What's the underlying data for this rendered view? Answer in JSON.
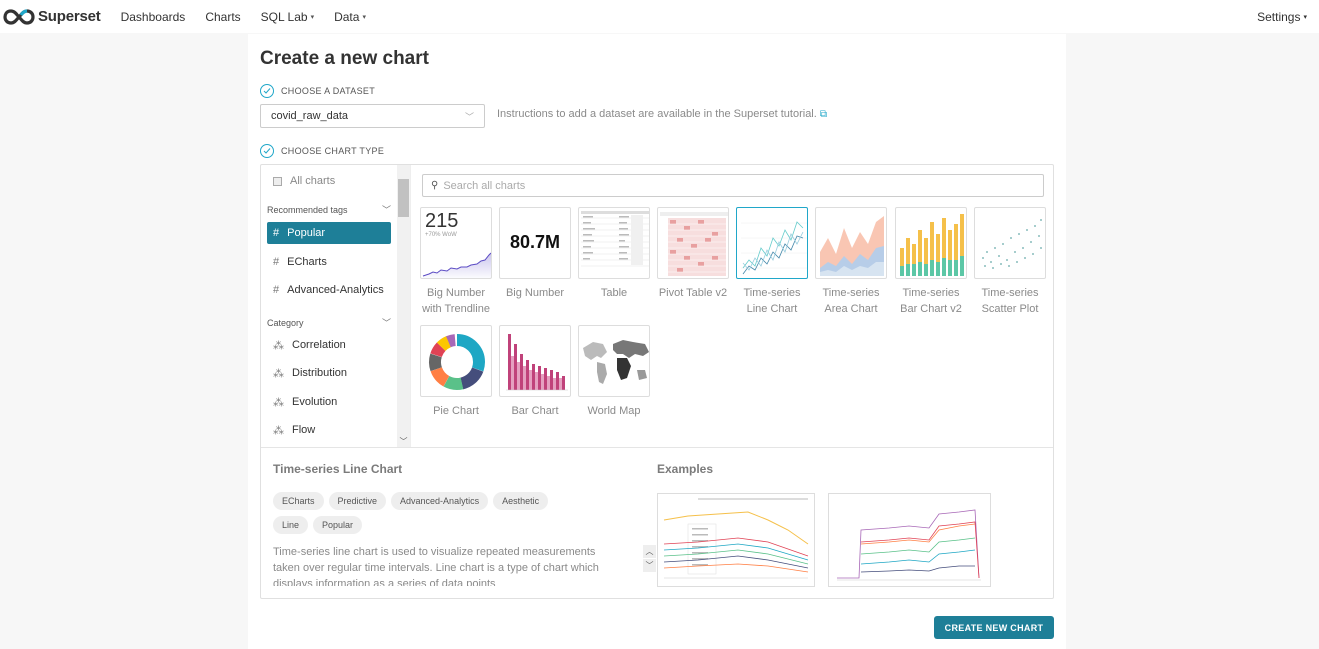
{
  "nav": {
    "brand": "Superset",
    "items": [
      {
        "label": "Dashboards"
      },
      {
        "label": "Charts"
      },
      {
        "label": "SQL Lab",
        "caret": "▾"
      },
      {
        "label": "Data",
        "caret": "▾"
      }
    ],
    "settings": "Settings",
    "settings_caret": "▾"
  },
  "page": {
    "title": "Create a new chart",
    "step1": "CHOOSE A DATASET",
    "step2": "CHOOSE CHART TYPE",
    "dataset_value": "covid_raw_data",
    "dataset_help": "Instructions to add a dataset are available in the Superset tutorial."
  },
  "sidebar": {
    "all_charts": "All charts",
    "recommended": "Recommended tags",
    "tags": [
      "Popular",
      "ECharts",
      "Advanced-Analytics"
    ],
    "category": "Category",
    "categories": [
      "Correlation",
      "Distribution",
      "Evolution",
      "Flow"
    ]
  },
  "search": {
    "placeholder": "Search all charts"
  },
  "tiles": [
    {
      "label": "Big Number with Trendline"
    },
    {
      "label": "Big Number"
    },
    {
      "label": "Table"
    },
    {
      "label": "Pivot Table v2"
    },
    {
      "label": "Time-series Line Chart",
      "selected": true
    },
    {
      "label": "Time-series Area Chart"
    },
    {
      "label": "Time-series Bar Chart v2"
    },
    {
      "label": "Time-series Scatter Plot"
    },
    {
      "label": "Pie Chart"
    },
    {
      "label": "Bar Chart"
    },
    {
      "label": "World Map"
    }
  ],
  "thumb_text": {
    "bn_trend_value": "215",
    "bn_trend_sub": "+70% WoW",
    "bn_value": "80.7M"
  },
  "detail": {
    "title": "Time-series Line Chart",
    "tags": [
      "ECharts",
      "Predictive",
      "Advanced-Analytics",
      "Aesthetic",
      "Line",
      "Popular"
    ],
    "description": "Time-series line chart is used to visualize repeated measurements taken over regular time intervals. Line chart is a type of chart which displays information as a series of data points",
    "examples_title": "Examples"
  },
  "create_button": "CREATE NEW CHART",
  "colors": {
    "accent": "#1e7f98",
    "check": "#20a7c9"
  }
}
